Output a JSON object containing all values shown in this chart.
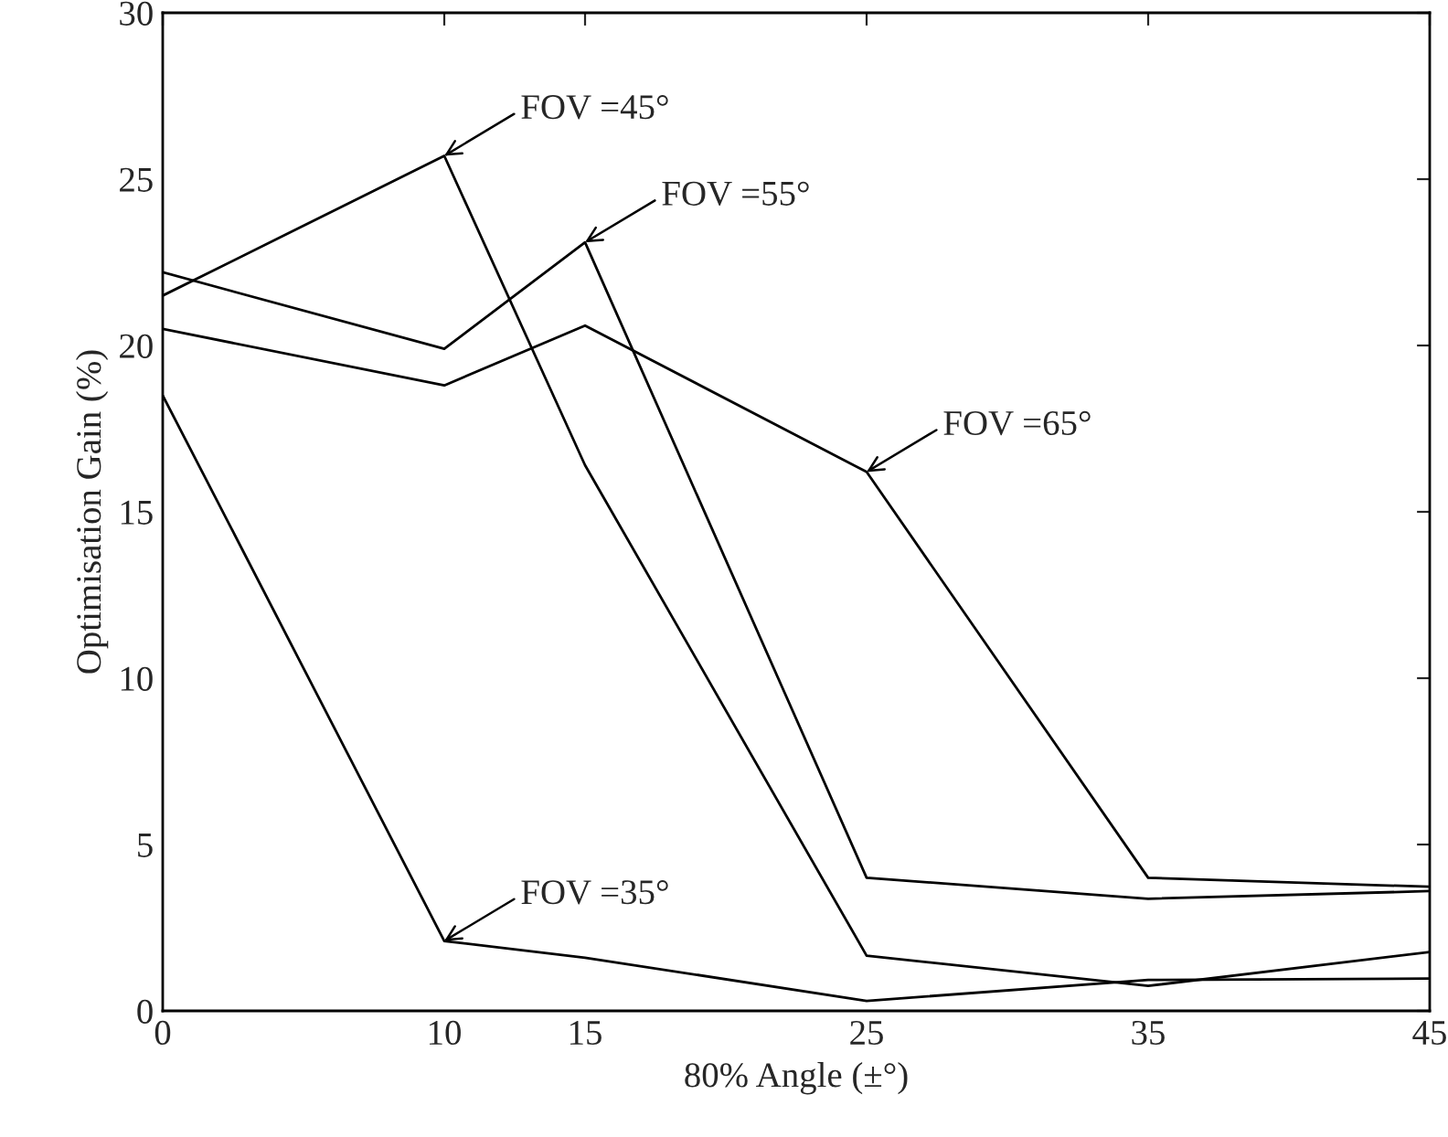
{
  "chart_data": {
    "type": "line",
    "xlabel": "80% Angle (±°)",
    "ylabel": "Optimisation Gain (%)",
    "x": [
      0,
      10,
      15,
      25,
      35,
      45
    ],
    "series": [
      {
        "color": "#000000",
        "values": [
          18.5,
          2.1,
          1.6,
          0.3,
          0.93,
          0.97
        ]
      },
      {
        "color": "#000000",
        "values": [
          21.5,
          25.7,
          16.4,
          1.66,
          0.75,
          1.77
        ]
      },
      {
        "color": "#000000",
        "values": [
          22.2,
          19.9,
          23.1,
          4.0,
          3.37,
          3.6
        ]
      },
      {
        "color": "#000000",
        "values": [
          20.5,
          18.8,
          20.6,
          16.2,
          4.0,
          3.73
        ]
      }
    ],
    "annotations": [
      {
        "text": "FOV =35°",
        "x": 10,
        "y": 2.1
      },
      {
        "text": "FOV =45°",
        "x": 10,
        "y": 25.7
      },
      {
        "text": "FOV =55°",
        "x": 15,
        "y": 23.1
      },
      {
        "text": "FOV =65°",
        "x": 25,
        "y": 16.2
      }
    ],
    "xlim": [
      0,
      45
    ],
    "ylim": [
      0,
      30
    ],
    "xticks": [
      0,
      10,
      15,
      25,
      35,
      45
    ],
    "yticks": [
      0,
      5,
      10,
      15,
      20,
      25,
      30
    ],
    "grid": false,
    "legend": false,
    "marker": "none",
    "line_style": "solid"
  }
}
